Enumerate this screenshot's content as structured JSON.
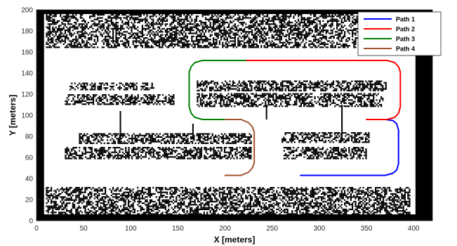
{
  "chart_data": {
    "type": "line",
    "xlabel": "X [meters]",
    "ylabel": "Y [meters]",
    "xlim": [
      0,
      420
    ],
    "ylim": [
      0,
      200
    ],
    "xticks": [
      0,
      50,
      100,
      150,
      200,
      250,
      300,
      350,
      400
    ],
    "yticks": [
      0,
      20,
      40,
      60,
      80,
      100,
      120,
      140,
      160,
      180,
      200
    ],
    "grid": false,
    "legend_position": "top-right",
    "colors": {
      "occupancy": "#000000",
      "free": "#ffffff",
      "axes_bg": "#ffffff"
    },
    "series": [
      {
        "name": "Path 1",
        "color": "#0000ff",
        "x": [
          280,
          370,
          378,
          382,
          384,
          384,
          382,
          378,
          370,
          352
        ],
        "y": [
          43,
          43,
          45,
          48,
          54,
          86,
          92,
          95,
          96,
          96
        ]
      },
      {
        "name": "Path 2",
        "color": "#ff0000",
        "x": [
          350,
          372,
          380,
          384,
          386,
          386,
          384,
          380,
          372,
          222
        ],
        "y": [
          96,
          96,
          98,
          102,
          108,
          141,
          146,
          150,
          152,
          152
        ]
      },
      {
        "name": "Path 3",
        "color": "#008000",
        "x": [
          222,
          176,
          168,
          164,
          162,
          162,
          164,
          168,
          176,
          200
        ],
        "y": [
          152,
          152,
          150,
          146,
          141,
          108,
          102,
          98,
          96,
          96
        ]
      },
      {
        "name": "Path 4",
        "color": "#a0522d",
        "x": [
          200,
          217,
          225,
          229,
          231,
          231,
          229,
          225,
          217,
          200
        ],
        "y": [
          96,
          96,
          93,
          89,
          84,
          55,
          50,
          46,
          43,
          43
        ]
      }
    ],
    "obstacles": {
      "frame": [
        {
          "x1": 0,
          "x2": 8,
          "y1": 0,
          "y2": 200
        },
        {
          "x1": 402,
          "x2": 420,
          "y1": 0,
          "y2": 200
        },
        {
          "x1": 0,
          "x2": 420,
          "y1": 0,
          "y2": 6
        },
        {
          "x1": 0,
          "x2": 420,
          "y1": 196,
          "y2": 200
        }
      ],
      "parking_rows": [
        {
          "x1": 10,
          "x2": 395,
          "y1": 164,
          "y2": 196
        },
        {
          "x1": 10,
          "x2": 395,
          "y1": 6,
          "y2": 32
        },
        {
          "x1": 35,
          "x2": 125,
          "y1": 124,
          "y2": 131
        },
        {
          "x1": 30,
          "x2": 145,
          "y1": 110,
          "y2": 120
        },
        {
          "x1": 170,
          "x2": 370,
          "y1": 123,
          "y2": 133
        },
        {
          "x1": 170,
          "x2": 368,
          "y1": 109,
          "y2": 121
        },
        {
          "x1": 45,
          "x2": 228,
          "y1": 73,
          "y2": 83
        },
        {
          "x1": 30,
          "x2": 228,
          "y1": 59,
          "y2": 70
        },
        {
          "x1": 260,
          "x2": 352,
          "y1": 74,
          "y2": 84
        },
        {
          "x1": 262,
          "x2": 350,
          "y1": 59,
          "y2": 70
        }
      ],
      "posts": [
        {
          "x": 89,
          "y1": 77,
          "y2": 104
        },
        {
          "x": 166,
          "y1": 77,
          "y2": 92
        },
        {
          "x": 244,
          "y1": 96,
          "y2": 110
        },
        {
          "x": 324,
          "y1": 78,
          "y2": 110
        }
      ]
    }
  }
}
